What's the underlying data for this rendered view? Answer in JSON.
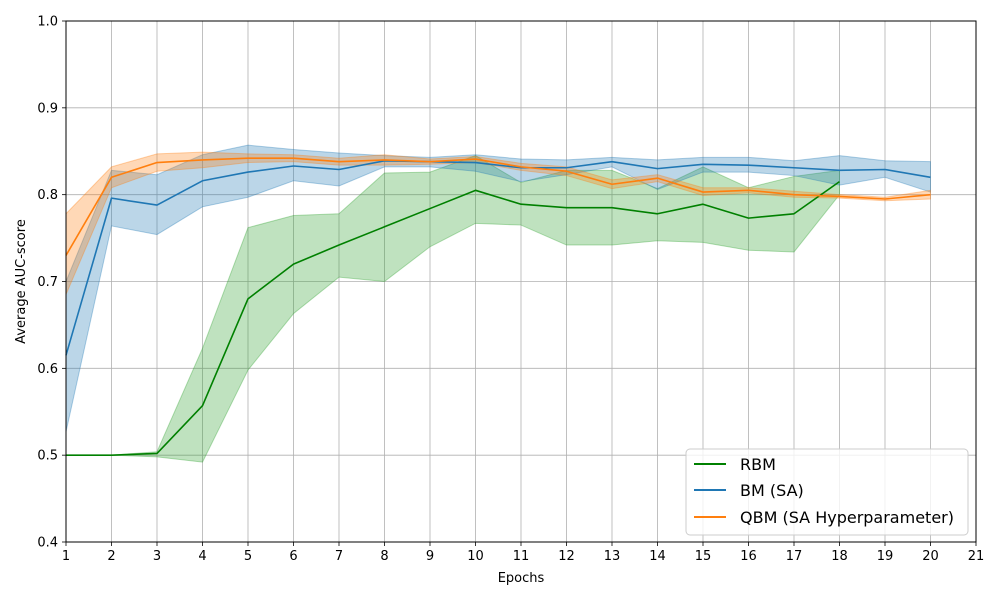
{
  "chart_data": {
    "type": "line",
    "xlabel": "Epochs",
    "ylabel": "Average AUC-score",
    "xlim": [
      1,
      21
    ],
    "ylim": [
      0.4,
      1.0
    ],
    "x_ticks": [
      1,
      2,
      3,
      4,
      5,
      6,
      7,
      8,
      9,
      10,
      11,
      12,
      13,
      14,
      15,
      16,
      17,
      18,
      19,
      20,
      21
    ],
    "y_ticks": [
      0.4,
      0.5,
      0.6,
      0.7,
      0.8,
      0.9,
      1.0
    ],
    "y_tick_labels": [
      "0.4",
      "0.5",
      "0.6",
      "0.7",
      "0.8",
      "0.9",
      "1.0"
    ],
    "grid": true,
    "legend_position": "bottom-right",
    "series": [
      {
        "name": "RBM",
        "color": "#008000",
        "band_color": "#2ca02c",
        "x": [
          1,
          2,
          3,
          4,
          5,
          6,
          7,
          8,
          9,
          10,
          11,
          12,
          13,
          14,
          15,
          16,
          17,
          18
        ],
        "values": [
          0.5,
          0.5,
          0.502,
          0.557,
          0.68,
          0.72,
          0.742,
          0.763,
          0.784,
          0.805,
          0.789,
          0.785,
          0.785,
          0.778,
          0.789,
          0.773,
          0.778,
          0.815
        ],
        "upper": [
          0.5,
          0.5,
          0.504,
          0.623,
          0.762,
          0.776,
          0.778,
          0.825,
          0.826,
          0.845,
          0.814,
          0.828,
          0.828,
          0.807,
          0.832,
          0.808,
          0.821,
          0.828
        ],
        "lower": [
          0.5,
          0.5,
          0.498,
          0.492,
          0.598,
          0.663,
          0.705,
          0.7,
          0.74,
          0.767,
          0.765,
          0.742,
          0.742,
          0.747,
          0.745,
          0.736,
          0.734,
          0.8
        ]
      },
      {
        "name": "BM (SA)",
        "color": "#1f77b4",
        "band_color": "#1f77b4",
        "x": [
          1,
          2,
          3,
          4,
          5,
          6,
          7,
          8,
          9,
          10,
          11,
          12,
          13,
          14,
          15,
          16,
          17,
          18,
          19,
          20
        ],
        "values": [
          0.615,
          0.796,
          0.788,
          0.816,
          0.826,
          0.833,
          0.829,
          0.839,
          0.838,
          0.837,
          0.831,
          0.831,
          0.838,
          0.83,
          0.835,
          0.834,
          0.831,
          0.828,
          0.829,
          0.82
        ],
        "upper": [
          0.7,
          0.828,
          0.823,
          0.846,
          0.857,
          0.852,
          0.848,
          0.845,
          0.843,
          0.846,
          0.841,
          0.84,
          0.843,
          0.84,
          0.843,
          0.843,
          0.839,
          0.845,
          0.839,
          0.838
        ],
        "lower": [
          0.527,
          0.764,
          0.754,
          0.786,
          0.797,
          0.816,
          0.81,
          0.832,
          0.832,
          0.827,
          0.815,
          0.823,
          0.832,
          0.806,
          0.826,
          0.826,
          0.822,
          0.811,
          0.82,
          0.803
        ]
      },
      {
        "name": "QBM (SA Hyperparameter)",
        "color": "#ff7f0e",
        "band_color": "#ff7f0e",
        "x": [
          1,
          2,
          3,
          4,
          5,
          6,
          7,
          8,
          9,
          10,
          11,
          12,
          13,
          14,
          15,
          16,
          17,
          18,
          19,
          20
        ],
        "values": [
          0.73,
          0.82,
          0.837,
          0.84,
          0.842,
          0.842,
          0.838,
          0.84,
          0.838,
          0.841,
          0.832,
          0.827,
          0.812,
          0.819,
          0.803,
          0.805,
          0.8,
          0.798,
          0.795,
          0.8
        ],
        "upper": [
          0.778,
          0.832,
          0.847,
          0.849,
          0.847,
          0.846,
          0.842,
          0.846,
          0.841,
          0.844,
          0.836,
          0.832,
          0.817,
          0.823,
          0.808,
          0.808,
          0.804,
          0.8,
          0.797,
          0.805
        ],
        "lower": [
          0.685,
          0.808,
          0.827,
          0.831,
          0.837,
          0.838,
          0.834,
          0.834,
          0.835,
          0.837,
          0.828,
          0.822,
          0.807,
          0.815,
          0.799,
          0.802,
          0.797,
          0.796,
          0.793,
          0.795
        ]
      }
    ]
  }
}
